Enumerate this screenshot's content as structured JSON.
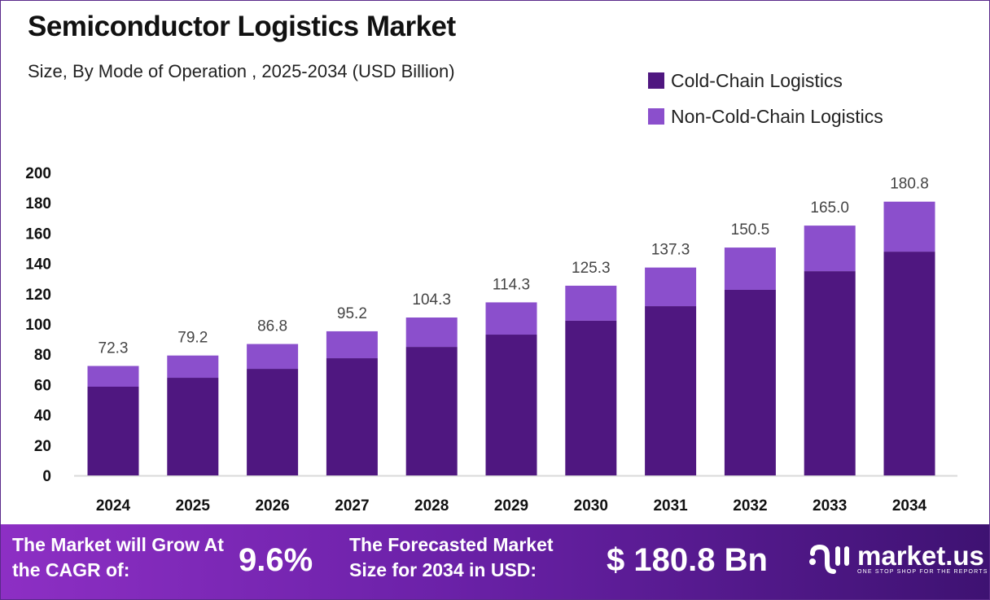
{
  "chart_data": {
    "type": "bar",
    "stacked": true,
    "title": "Semiconductor Logistics Market",
    "subtitle": "Size, By Mode of Operation , 2025-2034 (USD Billion)",
    "categories": [
      "2024",
      "2025",
      "2026",
      "2027",
      "2028",
      "2029",
      "2030",
      "2031",
      "2032",
      "2033",
      "2034"
    ],
    "series": [
      {
        "name": "Cold-Chain Logistics",
        "color": "#4f1780",
        "values": [
          58.6,
          64.5,
          70.4,
          77.4,
          84.9,
          93.0,
          102.2,
          111.8,
          122.6,
          134.9,
          147.8
        ]
      },
      {
        "name": "Non-Cold-Chain Logistics",
        "color": "#8b4fcc",
        "values": [
          13.7,
          14.7,
          16.4,
          17.8,
          19.4,
          21.3,
          23.1,
          25.5,
          27.9,
          30.1,
          33.0
        ]
      }
    ],
    "totals": [
      "72.3",
      "79.2",
      "86.8",
      "95.2",
      "104.3",
      "114.3",
      "125.3",
      "137.3",
      "150.5",
      "165.0",
      "180.8"
    ],
    "yticks": [
      "0",
      "20",
      "40",
      "60",
      "80",
      "100",
      "120",
      "140",
      "160",
      "180",
      "200"
    ],
    "ylim": [
      0,
      200
    ],
    "grid": false,
    "legend": "top-right"
  },
  "banner": {
    "cagr_label": "The Market will Grow At the CAGR of:",
    "cagr_value": "9.6%",
    "forecast_label": "The Forecasted Market Size for 2034 in USD:",
    "forecast_value": "$ 180.8 Bn",
    "logo_name": "market.us",
    "logo_tagline": "ONE STOP SHOP FOR THE REPORTS"
  }
}
